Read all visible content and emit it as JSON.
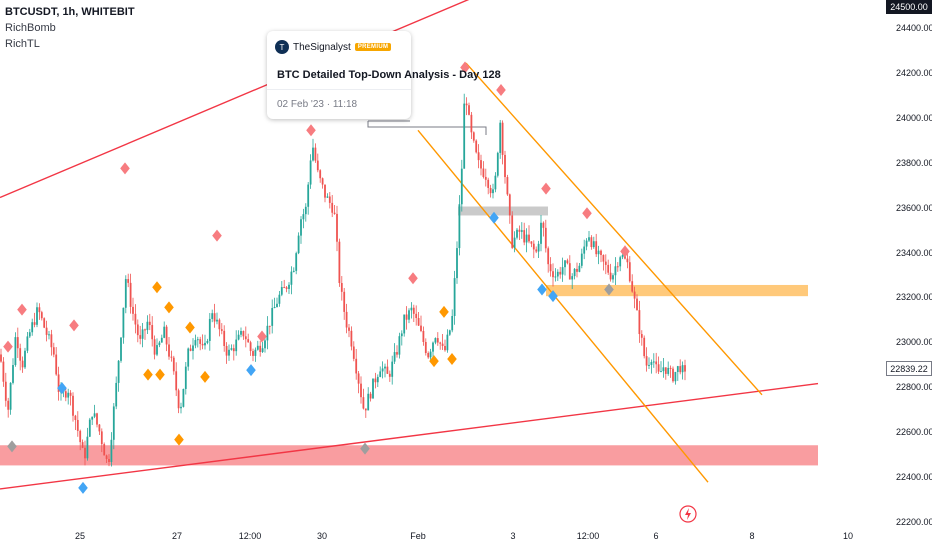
{
  "legend": {
    "symbol_line": "BTCUSDT, 1h, WHITEBIT",
    "indicator_1": "RichBomb",
    "indicator_2": "RichTL"
  },
  "popup": {
    "author": "TheSignalyst",
    "badge": "PREMIUM",
    "title": "BTC Detailed Top-Down Analysis - Day 128",
    "date": "02 Feb '23 · 11:18",
    "avatar_letter": "T"
  },
  "price_axis": {
    "labels": [
      "24400.00",
      "24200.00",
      "24000.00",
      "23800.00",
      "23600.00",
      "23400.00",
      "23200.00",
      "23000.00",
      "22800.00",
      "22600.00",
      "22400.00",
      "22200.00"
    ],
    "top_tag": "24500.00",
    "current_tag": "22839.22"
  },
  "time_axis": {
    "labels": [
      "25",
      "27",
      "12:00",
      "30",
      "Feb",
      "3",
      "12:00",
      "6",
      "8",
      "10"
    ]
  },
  "colors": {
    "up": "#26a69a",
    "down": "#ef5350",
    "trendline": "#f23645",
    "channel": "#ff9800",
    "support_zone": "#f77c80",
    "orange_zone": "#ffb74d",
    "marker_red": "#f77c80",
    "marker_blue": "#42a5f5",
    "marker_orange": "#ff9800",
    "marker_gray": "#9e9e9e",
    "current_tag_bg": "#ffffff",
    "top_tag_bg": "#131722"
  },
  "chart_data": {
    "type": "candlestick",
    "symbol": "BTCUSDT",
    "interval": "1h",
    "exchange": "WHITEBIT",
    "ylim": [
      22100,
      24500
    ],
    "x_range_days": [
      "Jan 24",
      "Feb 10"
    ],
    "price_path": [
      [
        0,
        22950
      ],
      [
        8,
        22700
      ],
      [
        16,
        23050
      ],
      [
        22,
        22900
      ],
      [
        30,
        23050
      ],
      [
        38,
        23150
      ],
      [
        46,
        23050
      ],
      [
        54,
        22950
      ],
      [
        60,
        22750
      ],
      [
        68,
        22800
      ],
      [
        76,
        22650
      ],
      [
        84,
        22480
      ],
      [
        92,
        22700
      ],
      [
        100,
        22600
      ],
      [
        108,
        22450
      ],
      [
        116,
        22800
      ],
      [
        122,
        23100
      ],
      [
        126,
        23300
      ],
      [
        132,
        23150
      ],
      [
        140,
        23000
      ],
      [
        148,
        23100
      ],
      [
        156,
        22950
      ],
      [
        164,
        23050
      ],
      [
        172,
        22900
      ],
      [
        180,
        22700
      ],
      [
        188,
        22950
      ],
      [
        196,
        23050
      ],
      [
        204,
        22950
      ],
      [
        212,
        23150
      ],
      [
        220,
        23050
      ],
      [
        228,
        22950
      ],
      [
        236,
        23000
      ],
      [
        244,
        23050
      ],
      [
        252,
        22950
      ],
      [
        262,
        23000
      ],
      [
        270,
        23100
      ],
      [
        278,
        23200
      ],
      [
        286,
        23250
      ],
      [
        294,
        23350
      ],
      [
        300,
        23550
      ],
      [
        306,
        23600
      ],
      [
        312,
        23900
      ],
      [
        318,
        23750
      ],
      [
        326,
        23650
      ],
      [
        334,
        23600
      ],
      [
        340,
        23250
      ],
      [
        346,
        23100
      ],
      [
        352,
        23000
      ],
      [
        358,
        22850
      ],
      [
        364,
        22700
      ],
      [
        372,
        22800
      ],
      [
        380,
        22900
      ],
      [
        388,
        22850
      ],
      [
        396,
        22950
      ],
      [
        404,
        23100
      ],
      [
        412,
        23150
      ],
      [
        420,
        23050
      ],
      [
        428,
        22950
      ],
      [
        436,
        23050
      ],
      [
        444,
        22950
      ],
      [
        452,
        23100
      ],
      [
        458,
        23500
      ],
      [
        462,
        23800
      ],
      [
        465,
        24150
      ],
      [
        470,
        23950
      ],
      [
        478,
        23800
      ],
      [
        486,
        23750
      ],
      [
        494,
        23650
      ],
      [
        500,
        24000
      ],
      [
        506,
        23700
      ],
      [
        512,
        23450
      ],
      [
        520,
        23500
      ],
      [
        528,
        23450
      ],
      [
        536,
        23400
      ],
      [
        542,
        23550
      ],
      [
        548,
        23350
      ],
      [
        556,
        23300
      ],
      [
        564,
        23350
      ],
      [
        572,
        23300
      ],
      [
        580,
        23350
      ],
      [
        588,
        23500
      ],
      [
        596,
        23400
      ],
      [
        604,
        23350
      ],
      [
        612,
        23300
      ],
      [
        620,
        23400
      ],
      [
        628,
        23350
      ],
      [
        634,
        23200
      ],
      [
        640,
        23050
      ],
      [
        646,
        22900
      ],
      [
        652,
        22950
      ],
      [
        658,
        22850
      ],
      [
        664,
        22900
      ],
      [
        672,
        22850
      ],
      [
        680,
        22900
      ],
      [
        686,
        22839
      ]
    ],
    "trendlines": [
      {
        "name": "upper-resistance",
        "from": [
          0,
          23650
        ],
        "to": [
          610,
          24800
        ]
      },
      {
        "name": "lower-support",
        "from": [
          0,
          22350
        ],
        "to": [
          818,
          22820
        ]
      }
    ],
    "channel": {
      "upper": {
        "from": [
          466,
          24250
        ],
        "to": [
          762,
          22770
        ]
      },
      "lower": {
        "from": [
          418,
          23950
        ],
        "to": [
          708,
          22380
        ]
      }
    },
    "zones": [
      {
        "name": "support-zone",
        "y_range": [
          22455,
          22545
        ],
        "x_range": [
          0,
          818
        ]
      },
      {
        "name": "resistance-zone",
        "y_range": [
          23210,
          23260
        ],
        "x_range": [
          546,
          808
        ]
      },
      {
        "name": "gray-box",
        "y_range": [
          23570,
          23610
        ],
        "x_range": [
          458,
          548
        ]
      }
    ],
    "markers": [
      {
        "x": 8,
        "y": 22985,
        "color": "red"
      },
      {
        "x": 12,
        "y": 22540,
        "color": "gray"
      },
      {
        "x": 22,
        "y": 23150,
        "color": "red"
      },
      {
        "x": 62,
        "y": 22800,
        "color": "blue"
      },
      {
        "x": 74,
        "y": 23080,
        "color": "red"
      },
      {
        "x": 83,
        "y": 22355,
        "color": "blue"
      },
      {
        "x": 125,
        "y": 23780,
        "color": "red"
      },
      {
        "x": 148,
        "y": 22860,
        "color": "orange"
      },
      {
        "x": 157,
        "y": 23250,
        "color": "orange"
      },
      {
        "x": 160,
        "y": 22860,
        "color": "orange"
      },
      {
        "x": 169,
        "y": 23160,
        "color": "orange"
      },
      {
        "x": 179,
        "y": 22570,
        "color": "orange"
      },
      {
        "x": 190,
        "y": 23070,
        "color": "orange"
      },
      {
        "x": 205,
        "y": 22850,
        "color": "orange"
      },
      {
        "x": 217,
        "y": 23480,
        "color": "red"
      },
      {
        "x": 251,
        "y": 22880,
        "color": "blue"
      },
      {
        "x": 262,
        "y": 23030,
        "color": "red"
      },
      {
        "x": 311,
        "y": 23950,
        "color": "red"
      },
      {
        "x": 365,
        "y": 22530,
        "color": "gray"
      },
      {
        "x": 413,
        "y": 23290,
        "color": "red"
      },
      {
        "x": 434,
        "y": 22920,
        "color": "orange"
      },
      {
        "x": 444,
        "y": 23140,
        "color": "orange"
      },
      {
        "x": 452,
        "y": 22930,
        "color": "orange"
      },
      {
        "x": 465,
        "y": 24230,
        "color": "red"
      },
      {
        "x": 494,
        "y": 23560,
        "color": "blue"
      },
      {
        "x": 501,
        "y": 24130,
        "color": "red"
      },
      {
        "x": 542,
        "y": 23240,
        "color": "blue"
      },
      {
        "x": 546,
        "y": 23690,
        "color": "red"
      },
      {
        "x": 553,
        "y": 23210,
        "color": "blue"
      },
      {
        "x": 587,
        "y": 23580,
        "color": "red"
      },
      {
        "x": 609,
        "y": 23240,
        "color": "gray"
      },
      {
        "x": 625,
        "y": 23410,
        "color": "red"
      }
    ]
  }
}
